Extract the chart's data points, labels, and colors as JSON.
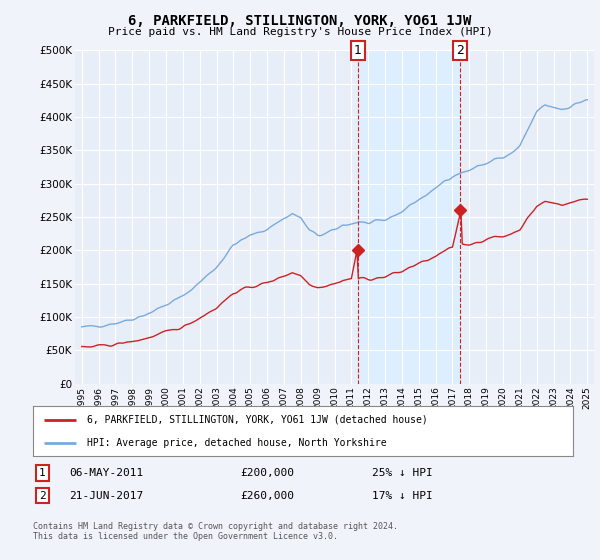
{
  "title": "6, PARKFIELD, STILLINGTON, YORK, YO61 1JW",
  "subtitle": "Price paid vs. HM Land Registry's House Price Index (HPI)",
  "background_color": "#f0f4fa",
  "plot_bg_color": "#e8eef8",
  "grid_color": "#d0d8e8",
  "ylim": [
    0,
    500000
  ],
  "yticks": [
    0,
    50000,
    100000,
    150000,
    200000,
    250000,
    300000,
    350000,
    400000,
    450000,
    500000
  ],
  "ytick_labels": [
    "£0",
    "£50K",
    "£100K",
    "£150K",
    "£200K",
    "£250K",
    "£300K",
    "£350K",
    "£400K",
    "£450K",
    "£500K"
  ],
  "hpi_color": "#7aaadd",
  "sold_color": "#cc2222",
  "shade_color": "#ddeeff",
  "sale1_x": 2011.37,
  "sale1_y": 200000,
  "sale2_x": 2017.47,
  "sale2_y": 260000,
  "vline1_x": 2011.37,
  "vline2_x": 2017.47,
  "annotation1_label": "1",
  "annotation2_label": "2",
  "legend_line1": "6, PARKFIELD, STILLINGTON, YORK, YO61 1JW (detached house)",
  "legend_line2": "HPI: Average price, detached house, North Yorkshire",
  "table_row1_num": "1",
  "table_row1_date": "06-MAY-2011",
  "table_row1_price": "£200,000",
  "table_row1_hpi": "25% ↓ HPI",
  "table_row2_num": "2",
  "table_row2_date": "21-JUN-2017",
  "table_row2_price": "£260,000",
  "table_row2_hpi": "17% ↓ HPI",
  "footer": "Contains HM Land Registry data © Crown copyright and database right 2024.\nThis data is licensed under the Open Government Licence v3.0.",
  "xlim_left": 1994.6,
  "xlim_right": 2025.4
}
